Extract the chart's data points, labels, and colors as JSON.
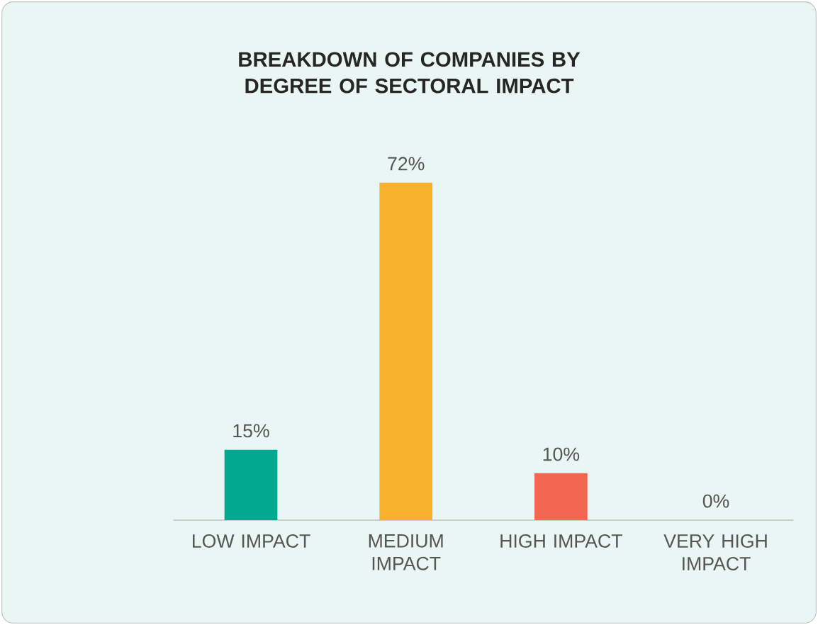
{
  "chart_data": {
    "type": "bar",
    "title": "BREAKDOWN OF COMPANIES BY DEGREE OF SECTORAL IMPACT",
    "categories": [
      "LOW IMPACT",
      "MEDIUM IMPACT",
      "HIGH IMPACT",
      "VERY HIGH IMPACT"
    ],
    "values": [
      15,
      72,
      10,
      0
    ],
    "value_labels": [
      "15%",
      "72%",
      "10%",
      "0%"
    ],
    "colors": [
      "#00a98f",
      "#f8b12c",
      "#f26652",
      "#f26652"
    ]
  }
}
